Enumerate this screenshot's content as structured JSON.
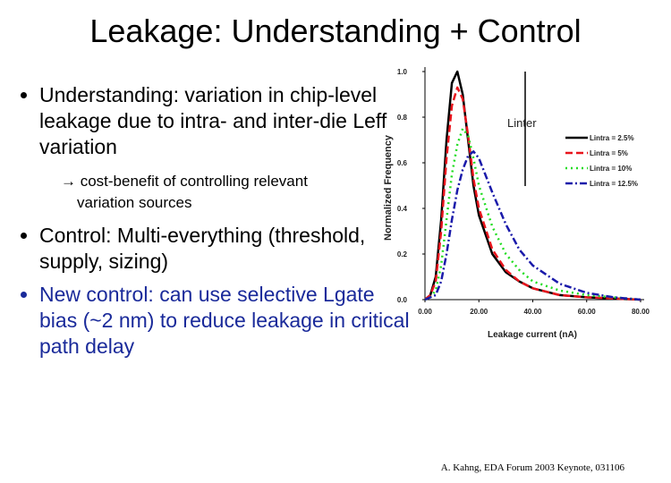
{
  "slide": {
    "title": "Leakage: Understanding + Control",
    "bullets": [
      "Understanding: variation in chip-level leakage due to intra- and inter-die Leff variation",
      "Control:  Multi-everything (threshold, supply, sizing)",
      "New control: can use selective Lgate bias (~2 nm) to reduce leakage in critical path delay"
    ],
    "sub_bullet": "→ cost-benefit of controlling relevant variation sources",
    "footer": "A. Kahng, EDA Forum 2003 Keynote, 031106"
  },
  "chart_data": {
    "type": "line",
    "x_label": "Leakage current (nA)",
    "y_label": "Normalized Frequency",
    "annotation": "Linter",
    "x": [
      0,
      2,
      4,
      6,
      8,
      10,
      12,
      14,
      16,
      18,
      20,
      25,
      30,
      35,
      40,
      50,
      60,
      70,
      80
    ],
    "series": [
      {
        "name": "Lintra = 2.5%",
        "color": "#000000",
        "dash": "solid",
        "values": [
          0,
          0.02,
          0.1,
          0.35,
          0.7,
          0.95,
          1.0,
          0.9,
          0.7,
          0.5,
          0.37,
          0.2,
          0.12,
          0.08,
          0.05,
          0.02,
          0.01,
          0.005,
          0
        ]
      },
      {
        "name": "Lintra = 5%",
        "color": "#e8141c",
        "dash": "dashed",
        "values": [
          0,
          0.02,
          0.08,
          0.3,
          0.62,
          0.85,
          0.93,
          0.88,
          0.72,
          0.53,
          0.4,
          0.22,
          0.13,
          0.08,
          0.05,
          0.02,
          0.01,
          0.005,
          0
        ]
      },
      {
        "name": "Lintra = 10%",
        "color": "#22dd22",
        "dash": "dotted",
        "values": [
          0,
          0.01,
          0.04,
          0.15,
          0.35,
          0.55,
          0.68,
          0.75,
          0.72,
          0.62,
          0.5,
          0.32,
          0.2,
          0.13,
          0.08,
          0.04,
          0.02,
          0.01,
          0
        ]
      },
      {
        "name": "Lintra = 12.5%",
        "color": "#1a1aaa",
        "dash": "dashdot",
        "values": [
          0,
          0.01,
          0.02,
          0.08,
          0.2,
          0.35,
          0.48,
          0.57,
          0.63,
          0.65,
          0.62,
          0.47,
          0.33,
          0.22,
          0.15,
          0.07,
          0.03,
          0.01,
          0
        ]
      }
    ],
    "xlim": [
      0,
      80
    ],
    "ylim": [
      0,
      1.0
    ],
    "xticks": [
      {
        "value": 0,
        "label": "0.00"
      },
      {
        "value": 20,
        "label": "20.00"
      },
      {
        "value": 40,
        "label": "40.00"
      },
      {
        "value": 60,
        "label": "60.00"
      },
      {
        "value": 80,
        "label": "80.00"
      }
    ],
    "yticks": [
      {
        "value": 0,
        "label": "0.0"
      },
      {
        "value": 0.2,
        "label": "0.2"
      },
      {
        "value": 0.4,
        "label": "0.4"
      },
      {
        "value": 0.6,
        "label": "0.6"
      },
      {
        "value": 0.8,
        "label": "0.8"
      },
      {
        "value": 1.0,
        "label": "1.0"
      }
    ],
    "legend": "upper right"
  }
}
